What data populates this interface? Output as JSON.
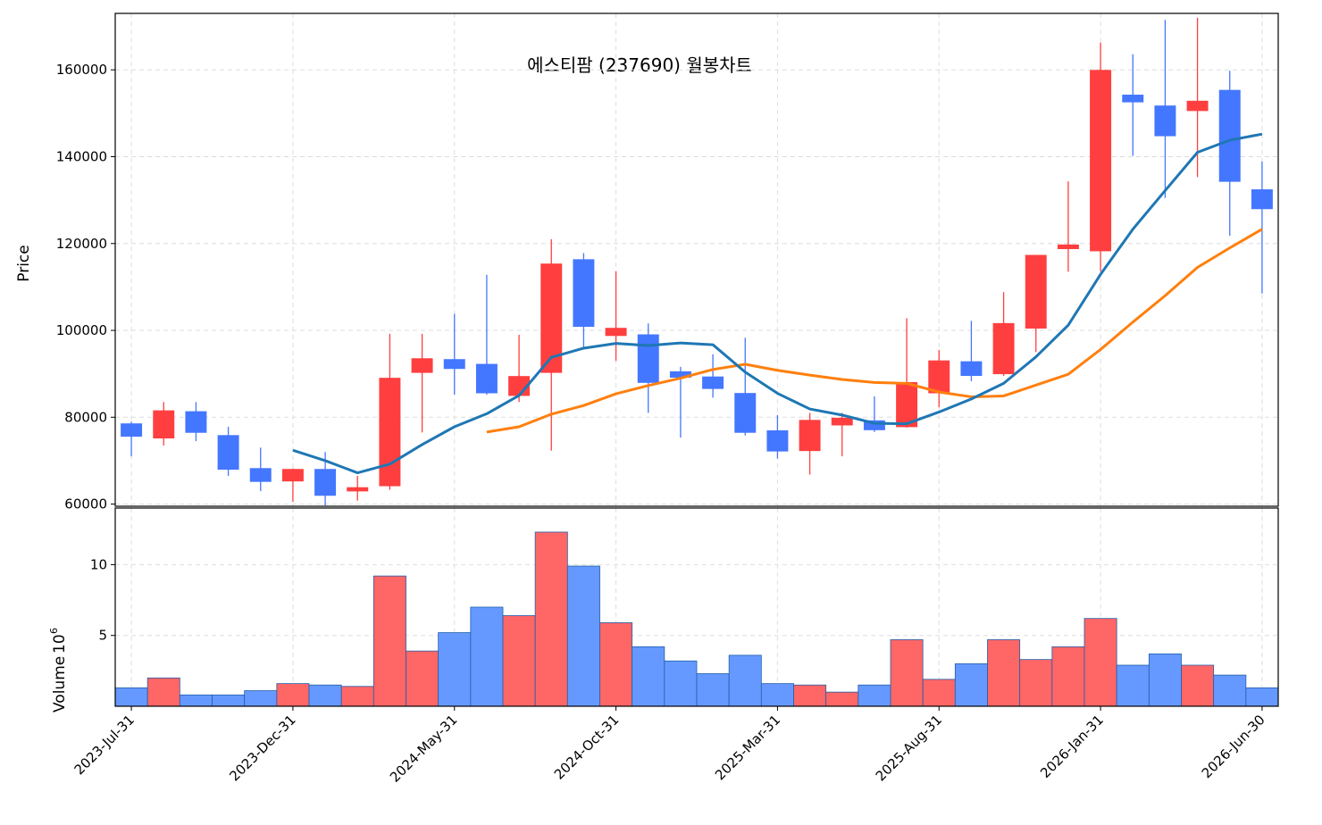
{
  "chart_data": {
    "type": "candlestick",
    "title": "에스티팜 (237690) 월봉차트",
    "price_ylabel": "Price",
    "volume_ylabel": "Volume",
    "volume_exponent": "10",
    "volume_exponent_power": "6",
    "price_ylim": [
      59500,
      173000
    ],
    "price_yticks": [
      "60000",
      "80000",
      "100000",
      "120000",
      "140000",
      "160000"
    ],
    "volume_ylim": [
      0,
      14
    ],
    "volume_yticks": [
      "5",
      "10"
    ],
    "xtick_labels": [
      "2023-Jul-31",
      "2023-Dec-31",
      "2024-May-31",
      "2024-Oct-31",
      "2025-Mar-31",
      "2025-Aug-31",
      "2026-Jan-31",
      "2026-Jun-30"
    ],
    "xtick_index": [
      0,
      5,
      10,
      15,
      20,
      25,
      30,
      35
    ],
    "colors": {
      "up": "#ff3f3f",
      "down": "#4477ff",
      "up_volume": "#ff6666",
      "down_volume": "#6699ff",
      "volume_edge": "#1f5faa",
      "ma_short": "#1f77b4",
      "ma_long": "#ff7f0e"
    },
    "ohlc": [
      {
        "o": 78500,
        "h": 79000,
        "l": 71000,
        "c": 75600,
        "v": 1.3
      },
      {
        "o": 75200,
        "h": 83500,
        "l": 73500,
        "c": 81500,
        "v": 2.0
      },
      {
        "o": 81300,
        "h": 83500,
        "l": 74500,
        "c": 76500,
        "v": 0.8
      },
      {
        "o": 75800,
        "h": 77800,
        "l": 66500,
        "c": 68000,
        "v": 0.8
      },
      {
        "o": 68200,
        "h": 73000,
        "l": 63000,
        "c": 65200,
        "v": 1.1
      },
      {
        "o": 65300,
        "h": 68200,
        "l": 60500,
        "c": 68000,
        "v": 1.6
      },
      {
        "o": 68000,
        "h": 72000,
        "l": 59700,
        "c": 62000,
        "v": 1.5
      },
      {
        "o": 63000,
        "h": 66500,
        "l": 60800,
        "c": 63800,
        "v": 1.4
      },
      {
        "o": 64200,
        "h": 99200,
        "l": 63300,
        "c": 89000,
        "v": 9.2
      },
      {
        "o": 90300,
        "h": 99200,
        "l": 76500,
        "c": 93500,
        "v": 3.9
      },
      {
        "o": 93300,
        "h": 103800,
        "l": 85200,
        "c": 91200,
        "v": 5.2
      },
      {
        "o": 92200,
        "h": 112800,
        "l": 85200,
        "c": 85600,
        "v": 7.0
      },
      {
        "o": 85000,
        "h": 99000,
        "l": 83500,
        "c": 89400,
        "v": 6.4
      },
      {
        "o": 90300,
        "h": 121000,
        "l": 72300,
        "c": 115300,
        "v": 12.3
      },
      {
        "o": 116300,
        "h": 117800,
        "l": 96000,
        "c": 100900,
        "v": 9.9
      },
      {
        "o": 98800,
        "h": 113600,
        "l": 93000,
        "c": 100500,
        "v": 5.9
      },
      {
        "o": 99000,
        "h": 101600,
        "l": 81000,
        "c": 88000,
        "v": 4.2
      },
      {
        "o": 90500,
        "h": 91600,
        "l": 75300,
        "c": 89200,
        "v": 3.2
      },
      {
        "o": 89300,
        "h": 94500,
        "l": 84500,
        "c": 86600,
        "v": 2.3
      },
      {
        "o": 85500,
        "h": 98300,
        "l": 75800,
        "c": 76500,
        "v": 3.6
      },
      {
        "o": 76900,
        "h": 80500,
        "l": 70500,
        "c": 72200,
        "v": 1.6
      },
      {
        "o": 72300,
        "h": 81000,
        "l": 66800,
        "c": 79300,
        "v": 1.5
      },
      {
        "o": 78200,
        "h": 81000,
        "l": 71000,
        "c": 79800,
        "v": 1.0
      },
      {
        "o": 79200,
        "h": 84800,
        "l": 76600,
        "c": 77100,
        "v": 1.5
      },
      {
        "o": 77800,
        "h": 102800,
        "l": 77600,
        "c": 88000,
        "v": 4.7
      },
      {
        "o": 85600,
        "h": 95500,
        "l": 82300,
        "c": 93000,
        "v": 1.9
      },
      {
        "o": 92800,
        "h": 102200,
        "l": 88300,
        "c": 89600,
        "v": 3.0
      },
      {
        "o": 90000,
        "h": 108800,
        "l": 89500,
        "c": 101600,
        "v": 4.7
      },
      {
        "o": 100500,
        "h": 117300,
        "l": 95000,
        "c": 117300,
        "v": 3.3
      },
      {
        "o": 118800,
        "h": 134300,
        "l": 113500,
        "c": 119700,
        "v": 4.2
      },
      {
        "o": 118300,
        "h": 166300,
        "l": 113600,
        "c": 159900,
        "v": 6.2
      },
      {
        "o": 154200,
        "h": 163600,
        "l": 140200,
        "c": 152600,
        "v": 2.9
      },
      {
        "o": 151700,
        "h": 171500,
        "l": 130500,
        "c": 144800,
        "v": 3.7
      },
      {
        "o": 150600,
        "h": 172000,
        "l": 135300,
        "c": 152800,
        "v": 2.9
      },
      {
        "o": 155300,
        "h": 159800,
        "l": 121800,
        "c": 134300,
        "v": 2.2
      },
      {
        "o": 132400,
        "h": 138900,
        "l": 108500,
        "c": 128000,
        "v": 1.3
      }
    ],
    "ma_short": {
      "start": 5,
      "values": [
        72400,
        70000,
        67200,
        69200,
        73700,
        77800,
        80800,
        85000,
        93800,
        95900,
        97000,
        96500,
        97100,
        96700,
        90400,
        85500,
        81900,
        80500,
        78600,
        78500,
        81200,
        84200,
        87800,
        93900,
        101200,
        112900,
        123300,
        132200,
        141000,
        143800,
        145200
      ]
    },
    "ma_long": {
      "start": 11,
      "values": [
        76600,
        77800,
        80700,
        82700,
        85400,
        87300,
        89000,
        91000,
        92200,
        90800,
        89700,
        88700,
        88000,
        87800,
        85800,
        84700,
        84900,
        87400,
        89900,
        95600,
        101900,
        108000,
        114500,
        119000,
        123300
      ]
    }
  }
}
